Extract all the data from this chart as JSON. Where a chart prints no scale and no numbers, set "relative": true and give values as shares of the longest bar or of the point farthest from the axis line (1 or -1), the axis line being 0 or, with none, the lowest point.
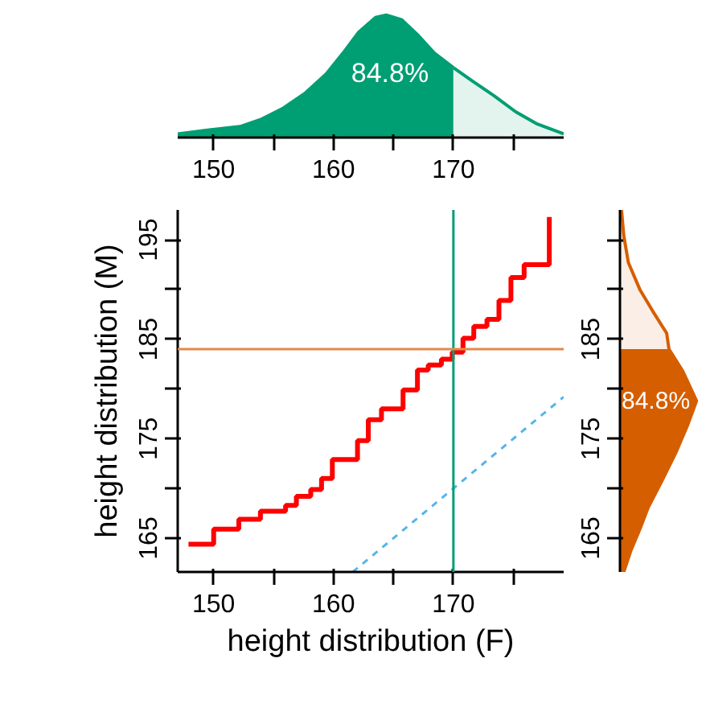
{
  "chart_data": [
    {
      "type": "area",
      "relative": true,
      "tick_labels": "x",
      "xlim": [
        147,
        179.2
      ],
      "xticks": [
        150,
        {
          "value": 155,
          "label": null
        },
        160,
        {
          "value": 165,
          "label": null
        },
        170,
        {
          "value": 175,
          "label": null
        }
      ],
      "series": [
        {
          "color": "#009e73",
          "x": [
            147.0,
            149.5,
            152.2,
            154.0,
            155.8,
            157.6,
            159.4,
            160.8,
            162.1,
            163.5,
            164.4,
            165.7,
            167.1,
            168.4,
            170.0
          ],
          "values": [
            0.03,
            0.06,
            0.09,
            0.15,
            0.24,
            0.36,
            0.52,
            0.69,
            0.86,
            0.98,
            1.0,
            0.96,
            0.83,
            0.69,
            0.57
          ]
        },
        {
          "color": "#e2f4ed",
          "x": [
            170.0,
            171.6,
            173.4,
            175.2,
            177.0,
            179.2
          ],
          "values": [
            0.57,
            0.46,
            0.34,
            0.21,
            0.11,
            0.03
          ]
        }
      ],
      "annotations": [
        "84.8%"
      ]
    },
    {
      "type": "step",
      "xlabel": "height distribution (F)",
      "ylabel": "height distribution (M)",
      "xlim": [
        147,
        179.2
      ],
      "ylim": [
        161.6,
        198
      ],
      "xticks": [
        150,
        {
          "value": 155,
          "label": null
        },
        160,
        {
          "value": 165,
          "label": null
        },
        170,
        {
          "value": 175,
          "label": null
        }
      ],
      "yticks": [
        165,
        {
          "value": 170,
          "label": null
        },
        175,
        {
          "value": 180,
          "label": null
        },
        185,
        {
          "value": 190,
          "label": null
        },
        195
      ],
      "series": [
        {
          "color": "#ff0000",
          "x": [
            147.9,
            150.0,
            152.1,
            153.9,
            156.0,
            156.9,
            158.1,
            159.0,
            159.9,
            162.0,
            162.9,
            164.0,
            165.8,
            167.0,
            167.9,
            169.0,
            169.9,
            170.8,
            171.7,
            172.8,
            173.8,
            174.8,
            175.9,
            178.0
          ],
          "values": [
            164.4,
            165.9,
            166.9,
            167.7,
            168.3,
            169.2,
            169.9,
            171.0,
            172.9,
            174.8,
            176.9,
            178.0,
            179.9,
            181.9,
            182.4,
            183.0,
            183.7,
            185.1,
            186.3,
            187.0,
            188.9,
            191.2,
            192.5,
            197.3
          ]
        },
        {
          "type": "line",
          "line_style": "dashed",
          "color": "#56b4e9",
          "x": [
            161.6,
            179.2
          ],
          "values": [
            161.6,
            179.2
          ]
        }
      ],
      "ref_lines": [
        {
          "axis": "x",
          "value": 170,
          "color": "#009e73"
        },
        {
          "axis": "y",
          "value": 184,
          "color": "#e08a4c"
        }
      ]
    },
    {
      "type": "area",
      "orientation": "horizontal",
      "relative": true,
      "tick_labels": "y",
      "ylim": [
        161.6,
        198
      ],
      "yticks": [
        165,
        {
          "value": 170,
          "label": null
        },
        175,
        {
          "value": 180,
          "label": null
        },
        185,
        {
          "value": 190,
          "label": null
        },
        {
          "value": 195,
          "label": null
        }
      ],
      "series": [
        {
          "color": "#d55e00",
          "x": [
            184.0,
            181.8,
            178.8,
            176.3,
            173.6,
            170.8,
            168.1,
            165.9,
            163.7,
            161.6
          ],
          "values": [
            0.64,
            0.82,
            1.0,
            0.88,
            0.73,
            0.55,
            0.37,
            0.26,
            0.14,
            0.05
          ]
        },
        {
          "color": "#fbeee6",
          "x": [
            198.0,
            195.4,
            192.7,
            190.0,
            187.8,
            185.6,
            184.0
          ],
          "values": [
            0.02,
            0.05,
            0.11,
            0.26,
            0.43,
            0.61,
            0.64
          ]
        }
      ],
      "annotations": [
        "84.8%"
      ]
    }
  ]
}
